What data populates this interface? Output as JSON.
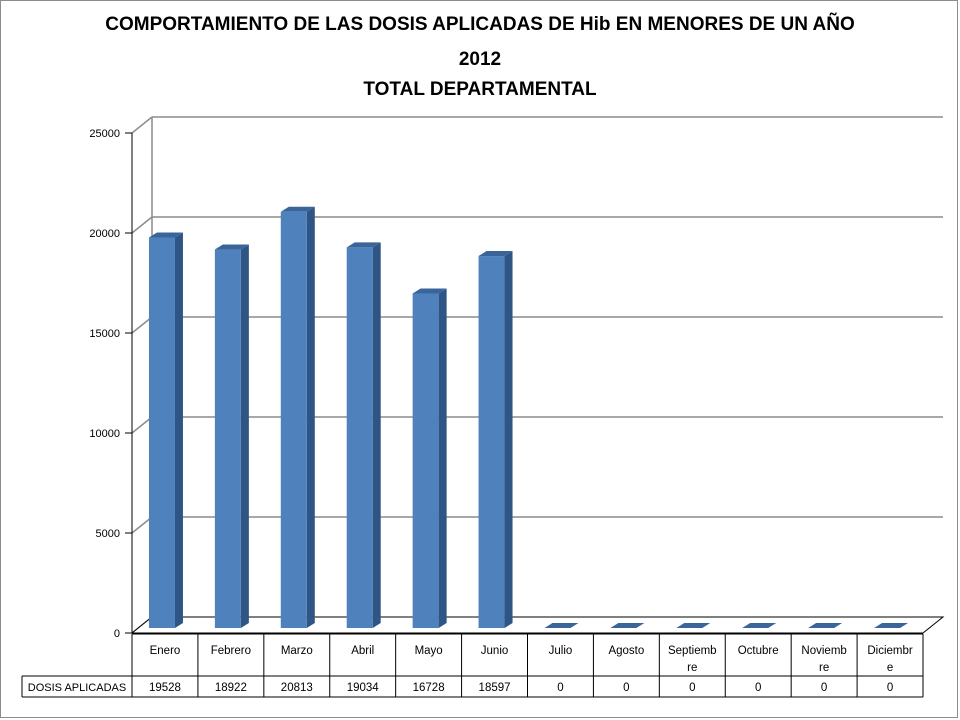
{
  "chart_data": {
    "type": "bar",
    "title_lines": [
      "COMPORTAMIENTO  DE LAS DOSIS APLICADAS DE Hib EN MENORES DE UN AÑO",
      "2012",
      "TOTAL DEPARTAMENTAL"
    ],
    "categories": [
      "Enero",
      "Febrero",
      "Marzo",
      "Abril",
      "Mayo",
      "Junio",
      "Julio",
      "Agosto",
      "Septiembre",
      "Octubre",
      "Noviembre",
      "Diciembre"
    ],
    "category_display": [
      [
        "Enero"
      ],
      [
        "Febrero"
      ],
      [
        "Marzo"
      ],
      [
        "Abril"
      ],
      [
        "Mayo"
      ],
      [
        "Junio"
      ],
      [
        "Julio"
      ],
      [
        "Agosto"
      ],
      [
        "Septiemb",
        "re"
      ],
      [
        "Octubre"
      ],
      [
        "Noviemb",
        "re"
      ],
      [
        "Diciembr",
        "e"
      ]
    ],
    "series": [
      {
        "name": "DOSIS APLICADAS",
        "values": [
          19528,
          18922,
          20813,
          19034,
          16728,
          18597,
          0,
          0,
          0,
          0,
          0,
          0
        ]
      }
    ],
    "ylim": [
      0,
      25000
    ],
    "yticks": [
      0,
      5000,
      10000,
      15000,
      20000,
      25000
    ],
    "grid": true,
    "legend": "data-table",
    "colors": {
      "bar_front": "#4f81bd",
      "bar_side": "#2f5585",
      "bar_top": "#3a659b",
      "grid": "#8c8c8c",
      "axis": "#000000"
    }
  }
}
